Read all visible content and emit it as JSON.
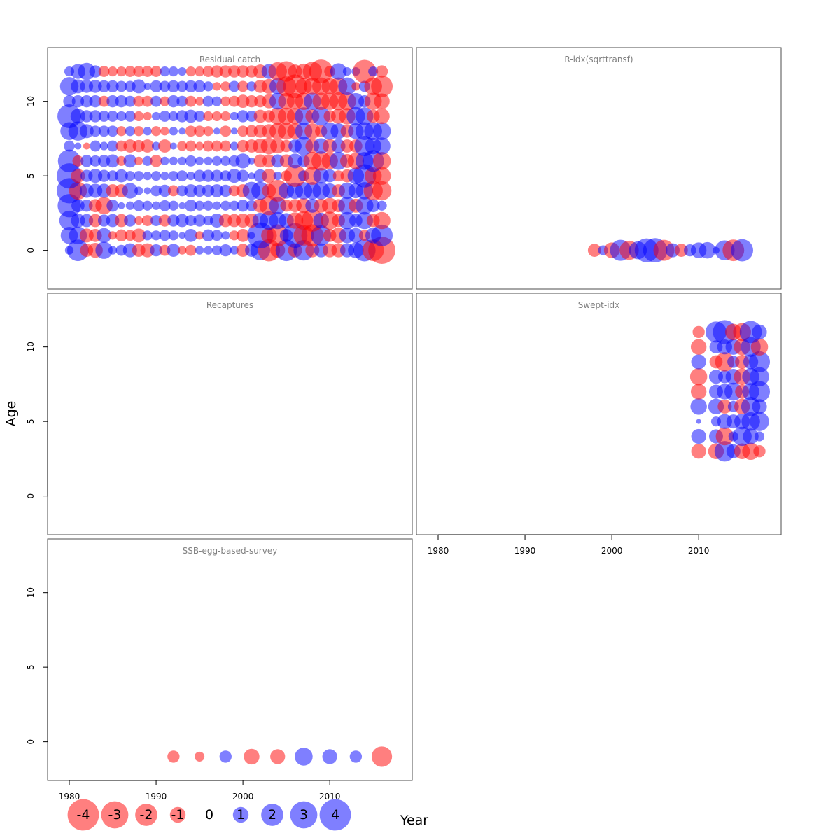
{
  "figure": {
    "xlabel": "Year",
    "ylabel": "Age",
    "x_axis": {
      "ticks": [
        1980,
        1990,
        2000,
        2010
      ],
      "range": [
        1977.5,
        2019.5
      ]
    },
    "y_axis": {
      "ticks": [
        0,
        5,
        10
      ],
      "range": [
        -2.6,
        13.6
      ]
    },
    "colors": {
      "negative": "#ff0000",
      "positive": "#0000ff",
      "fill_opacity": 0.5,
      "frame": "#4d4d4d",
      "title": "#808080"
    }
  },
  "legend": {
    "items": [
      {
        "label": "-4",
        "value": -4
      },
      {
        "label": "-3",
        "value": -3
      },
      {
        "label": "-2",
        "value": -2
      },
      {
        "label": "-1",
        "value": -1
      },
      {
        "label": "0",
        "value": 0
      },
      {
        "label": "1",
        "value": 1
      },
      {
        "label": "2",
        "value": 2
      },
      {
        "label": "3",
        "value": 3
      },
      {
        "label": "4",
        "value": 4
      }
    ]
  },
  "chart_data": [
    {
      "type": "scatter",
      "title": "Residual catch",
      "encoding": "bubble",
      "years": [
        1980,
        1981,
        1982,
        1983,
        1984,
        1985,
        1986,
        1987,
        1988,
        1989,
        1990,
        1991,
        1992,
        1993,
        1994,
        1995,
        1996,
        1997,
        1998,
        1999,
        2000,
        2001,
        2002,
        2003,
        2004,
        2005,
        2006,
        2007,
        2008,
        2009,
        2010,
        2011,
        2012,
        2013,
        2014,
        2015,
        2016
      ],
      "ages": [
        0,
        1,
        2,
        3,
        4,
        5,
        6,
        7,
        8,
        9,
        10,
        11,
        12
      ],
      "residuals": [
        [
          0.3,
          1.9,
          -0.7,
          -0.9,
          1.2,
          0.3,
          0.5,
          0.8,
          -0.7,
          -0.8,
          0.6,
          -0.5,
          0.7,
          -0.3,
          -0.5,
          0.3,
          0.3,
          0.4,
          0.6,
          0.3,
          -0.7,
          0.7,
          1.6,
          -2.0,
          -0.9,
          1.9,
          -0.8,
          1.7,
          -0.8,
          0.8,
          -0.8,
          -0.8,
          0.8,
          1.0,
          2.0,
          -1.9,
          -3.0
        ],
        [
          1.2,
          1.3,
          -0.8,
          -0.7,
          0.9,
          -0.3,
          -0.6,
          -0.5,
          -0.8,
          0.4,
          0.4,
          0.5,
          0.4,
          0.2,
          0.7,
          -0.3,
          0.6,
          0.5,
          0.3,
          -0.4,
          -0.7,
          0.2,
          2.8,
          -1.0,
          -2.0,
          0.7,
          2.5,
          -1.7,
          -2.0,
          1.7,
          -0.7,
          -1.0,
          1.0,
          0.9,
          -0.5,
          1.0,
          1.9
        ],
        [
          1.6,
          0.8,
          0.7,
          -0.7,
          0.6,
          0.7,
          -0.7,
          0.6,
          -0.3,
          -0.5,
          0.5,
          -0.6,
          0.6,
          0.7,
          0.5,
          0.6,
          0.4,
          0.8,
          -0.7,
          -0.7,
          -0.8,
          -0.8,
          1.0,
          1.4,
          1.2,
          0.9,
          -1.1,
          -1.4,
          -2.0,
          1.0,
          -1.3,
          -0.7,
          1.2,
          0.7,
          1.2,
          -0.7,
          -1.2
        ],
        [
          2.2,
          0.7,
          0.6,
          -0.7,
          -1.2,
          0.6,
          0.2,
          0.3,
          0.5,
          0.4,
          0.3,
          0.5,
          0.4,
          0.2,
          0.6,
          0.4,
          0.4,
          0.3,
          0.4,
          0.4,
          0.6,
          0.5,
          -0.8,
          -1.5,
          1.2,
          -0.6,
          -0.7,
          -0.9,
          0.8,
          -0.8,
          -1.0,
          -0.7,
          1.3,
          -0.8,
          1.3,
          0.7,
          0.4
        ],
        [
          2.6,
          -1.3,
          0.8,
          0.8,
          0.8,
          -0.7,
          -0.7,
          1.0,
          0.3,
          0.2,
          0.5,
          0.6,
          -0.5,
          0.5,
          0.7,
          0.6,
          0.6,
          0.7,
          0.6,
          -0.5,
          -0.7,
          1.3,
          1.3,
          -0.8,
          -1.9,
          1.0,
          1.1,
          1.2,
          1.2,
          1.2,
          0.9,
          -0.7,
          1.1,
          0.9,
          1.2,
          -1.5,
          -1.5
        ],
        [
          2.6,
          -0.8,
          0.6,
          0.8,
          0.6,
          0.5,
          0.7,
          0.4,
          0.4,
          0.3,
          0.4,
          0.3,
          0.4,
          0.5,
          0.3,
          0.6,
          0.6,
          0.6,
          0.5,
          0.8,
          0.6,
          0.2,
          0.7,
          -0.8,
          0.3,
          -0.5,
          -2.0,
          0.5,
          -1.3,
          1.0,
          0.7,
          -0.5,
          -0.7,
          1.1,
          2.2,
          -1.2,
          -1.3
        ],
        [
          2.1,
          -0.5,
          0.6,
          0.5,
          0.6,
          0.7,
          -0.4,
          0.7,
          -0.3,
          0.4,
          -0.6,
          0.3,
          0.3,
          0.3,
          0.5,
          0.3,
          0.3,
          0.4,
          0.4,
          0.5,
          0.9,
          0.2,
          -0.7,
          -0.7,
          0.7,
          -0.7,
          0.9,
          0.6,
          -1.3,
          -1.5,
          -1.1,
          1.3,
          -0.8,
          -1.1,
          1.3,
          1.9,
          -1.3
        ],
        [
          0.5,
          0.2,
          -0.2,
          0.5,
          0.3,
          0.5,
          -0.5,
          -0.7,
          -0.6,
          -0.7,
          0.3,
          -0.7,
          0.2,
          -0.4,
          -0.5,
          -0.3,
          -0.5,
          -0.5,
          -0.5,
          0.3,
          -0.6,
          -0.7,
          -0.9,
          -1.1,
          -0.9,
          -0.6,
          0.7,
          1.4,
          -0.8,
          1.0,
          -0.8,
          0.8,
          -0.7,
          -0.7,
          1.7,
          1.1,
          1.2
        ],
        [
          1.3,
          1.5,
          0.8,
          0.5,
          0.5,
          0.5,
          -0.4,
          0.4,
          -0.4,
          0.3,
          -0.4,
          -0.3,
          0.3,
          0.2,
          -0.5,
          -0.5,
          -0.4,
          0.2,
          -0.5,
          0.2,
          -0.5,
          -0.6,
          -0.7,
          -0.8,
          -1.1,
          -1.2,
          -1.0,
          1.2,
          -1.0,
          -0.6,
          1.2,
          1.0,
          -0.7,
          1.0,
          1.3,
          1.3,
          1.3
        ],
        [
          2.3,
          0.9,
          0.6,
          0.6,
          0.5,
          0.5,
          0.4,
          0.5,
          -0.4,
          -0.3,
          0.3,
          0.5,
          0.4,
          0.6,
          0.7,
          0.5,
          -0.4,
          -0.4,
          -0.4,
          0.3,
          0.6,
          0.5,
          -0.7,
          -0.6,
          -1.2,
          -1.2,
          -1.1,
          1.3,
          -0.8,
          1.4,
          -0.6,
          -0.9,
          -1.1,
          1.4,
          1.3,
          -0.7,
          -1.0
        ],
        [
          0.6,
          0.6,
          0.6,
          0.6,
          -0.5,
          0.6,
          0.6,
          0.5,
          -0.5,
          -0.5,
          0.5,
          -0.4,
          0.6,
          0.5,
          -0.5,
          -0.3,
          0.5,
          0.4,
          -0.4,
          -0.5,
          -0.7,
          -0.6,
          -0.6,
          -0.8,
          1.1,
          -1.1,
          -1.1,
          -1.2,
          1.2,
          -1.2,
          -1.2,
          -1.3,
          -1.3,
          1.1,
          0.6,
          -1.2,
          -1.0
        ],
        [
          1.4,
          0.8,
          0.7,
          0.7,
          0.6,
          0.6,
          0.5,
          0.5,
          0.8,
          0.2,
          0.6,
          0.5,
          0.6,
          0.5,
          0.6,
          0.6,
          0.4,
          -0.3,
          -0.4,
          0.5,
          -0.5,
          0.4,
          -0.7,
          -0.9,
          1.1,
          -1.6,
          -2.3,
          -1.1,
          -1.2,
          -1.3,
          -1.1,
          -1.3,
          1.3,
          -0.3,
          0.5,
          -1.3,
          -1.9
        ],
        [
          0.4,
          0.9,
          1.2,
          0.6,
          -0.5,
          -0.4,
          -0.4,
          -0.5,
          -0.5,
          -0.5,
          -0.5,
          0.4,
          0.4,
          0.3,
          -0.4,
          -0.4,
          -0.5,
          -0.6,
          -0.6,
          -0.6,
          -0.6,
          -0.6,
          -0.8,
          0.9,
          -1.4,
          -1.7,
          -0.8,
          -1.0,
          -1.5,
          -2.3,
          -0.5,
          1.1,
          0.3,
          0.3,
          -2.2,
          0.4,
          -0.6
        ]
      ]
    },
    {
      "type": "scatter",
      "title": "R-idx(sqrttransf)",
      "encoding": "bubble",
      "years": [
        1998,
        1999,
        2000,
        2001,
        2002,
        2003,
        2004,
        2005,
        2006,
        2007,
        2008,
        2009,
        2010,
        2011,
        2012,
        2013,
        2014,
        2015
      ],
      "ages": [
        0
      ],
      "residuals": [
        [
          -0.7,
          0.4,
          -1.0,
          1.8,
          -1.5,
          1.3,
          2.3,
          2.4,
          -1.8,
          0.8,
          -0.7,
          0.6,
          1.0,
          1.1,
          0.2,
          1.6,
          -1.9,
          2.0
        ]
      ]
    },
    {
      "type": "scatter",
      "title": "Recaptures",
      "encoding": "bubble",
      "years": [],
      "ages": [],
      "residuals": []
    },
    {
      "type": "scatter",
      "title": "Swept-idx",
      "encoding": "bubble",
      "years": [
        2010,
        2011,
        2012,
        2013,
        2014,
        2015,
        2016,
        2017
      ],
      "ages": [
        3,
        4,
        5,
        6,
        7,
        8,
        9,
        10,
        11
      ],
      "residuals": [
        [
          -0.9,
          0,
          -1.0,
          1.7,
          0.8,
          -1.0,
          -1.2,
          -0.6
        ],
        [
          0.9,
          0,
          0.8,
          -1.3,
          0.4,
          1.5,
          1.0,
          0.4
        ],
        [
          0.1,
          0,
          0.4,
          0.9,
          0.8,
          1.0,
          1.4,
          1.5
        ],
        [
          1.1,
          0,
          1.0,
          -0.8,
          0.5,
          -1.0,
          1.5,
          0.9
        ],
        [
          -1.0,
          0,
          0.8,
          1.0,
          1.3,
          -0.8,
          1.2,
          1.8
        ],
        [
          -1.2,
          0,
          0.8,
          0.7,
          1.0,
          -1.1,
          1.2,
          1.5
        ],
        [
          0.9,
          0,
          -0.7,
          -1.5,
          0.6,
          -0.8,
          0.9,
          1.8
        ],
        [
          -1.0,
          0,
          0.7,
          0.9,
          1.0,
          -1.1,
          1.6,
          -1.2
        ],
        [
          -0.6,
          0,
          1.8,
          2.3,
          -1.1,
          -1.3,
          2.0,
          0.9
        ]
      ]
    },
    {
      "type": "scatter",
      "title": "SSB-egg-based-survey",
      "encoding": "bubble",
      "years": [
        1992,
        1995,
        1998,
        2001,
        2004,
        2007,
        2010,
        2013,
        2016
      ],
      "ages": [
        -1
      ],
      "residuals": [
        [
          -0.6,
          -0.4,
          0.6,
          -1.0,
          -0.9,
          1.3,
          0.9,
          0.6,
          -1.7
        ]
      ]
    }
  ]
}
